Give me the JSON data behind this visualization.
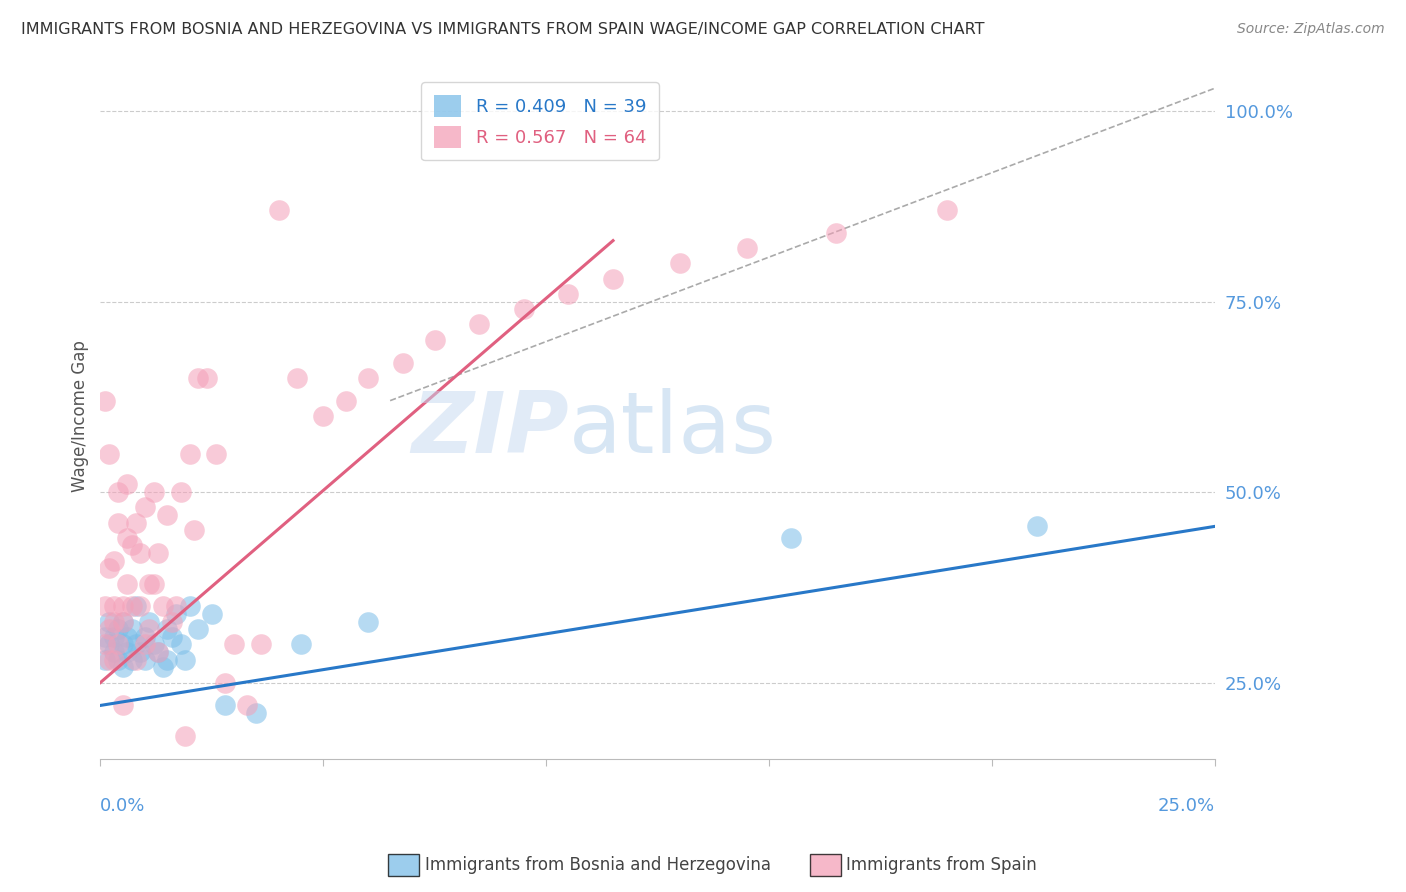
{
  "title": "IMMIGRANTS FROM BOSNIA AND HERZEGOVINA VS IMMIGRANTS FROM SPAIN WAGE/INCOME GAP CORRELATION CHART",
  "source": "Source: ZipAtlas.com",
  "ylabel": "Wage/Income Gap",
  "xlim": [
    0.0,
    0.25
  ],
  "ylim": [
    0.15,
    1.05
  ],
  "blue_R": 0.409,
  "blue_N": 39,
  "pink_R": 0.567,
  "pink_N": 64,
  "blue_color": "#7bbde8",
  "pink_color": "#f4a0b8",
  "blue_line_color": "#2878c8",
  "pink_line_color": "#e06080",
  "blue_scatter_x": [
    0.001,
    0.001,
    0.002,
    0.002,
    0.003,
    0.003,
    0.004,
    0.004,
    0.005,
    0.005,
    0.005,
    0.006,
    0.006,
    0.007,
    0.007,
    0.008,
    0.008,
    0.009,
    0.01,
    0.01,
    0.011,
    0.012,
    0.013,
    0.014,
    0.015,
    0.015,
    0.016,
    0.017,
    0.018,
    0.019,
    0.02,
    0.022,
    0.025,
    0.028,
    0.035,
    0.045,
    0.06,
    0.155,
    0.21
  ],
  "blue_scatter_y": [
    0.31,
    0.28,
    0.3,
    0.33,
    0.29,
    0.31,
    0.28,
    0.32,
    0.3,
    0.27,
    0.33,
    0.29,
    0.31,
    0.28,
    0.32,
    0.3,
    0.35,
    0.29,
    0.31,
    0.28,
    0.33,
    0.3,
    0.29,
    0.27,
    0.32,
    0.28,
    0.31,
    0.34,
    0.3,
    0.28,
    0.35,
    0.32,
    0.34,
    0.22,
    0.21,
    0.3,
    0.33,
    0.44,
    0.455
  ],
  "pink_scatter_x": [
    0.001,
    0.001,
    0.001,
    0.002,
    0.002,
    0.002,
    0.002,
    0.003,
    0.003,
    0.003,
    0.003,
    0.004,
    0.004,
    0.004,
    0.005,
    0.005,
    0.005,
    0.006,
    0.006,
    0.006,
    0.007,
    0.007,
    0.008,
    0.008,
    0.009,
    0.009,
    0.01,
    0.01,
    0.011,
    0.011,
    0.012,
    0.012,
    0.013,
    0.013,
    0.014,
    0.015,
    0.016,
    0.017,
    0.018,
    0.019,
    0.02,
    0.021,
    0.022,
    0.024,
    0.026,
    0.028,
    0.03,
    0.033,
    0.036,
    0.04,
    0.044,
    0.05,
    0.055,
    0.06,
    0.068,
    0.075,
    0.085,
    0.095,
    0.105,
    0.115,
    0.13,
    0.145,
    0.165,
    0.19
  ],
  "pink_scatter_y": [
    0.3,
    0.62,
    0.35,
    0.28,
    0.55,
    0.4,
    0.32,
    0.28,
    0.35,
    0.41,
    0.33,
    0.3,
    0.46,
    0.5,
    0.33,
    0.35,
    0.22,
    0.38,
    0.44,
    0.51,
    0.35,
    0.43,
    0.28,
    0.46,
    0.35,
    0.42,
    0.3,
    0.48,
    0.32,
    0.38,
    0.38,
    0.5,
    0.42,
    0.29,
    0.35,
    0.47,
    0.33,
    0.35,
    0.5,
    0.18,
    0.55,
    0.45,
    0.65,
    0.65,
    0.55,
    0.25,
    0.3,
    0.22,
    0.3,
    0.87,
    0.65,
    0.6,
    0.62,
    0.65,
    0.67,
    0.7,
    0.72,
    0.74,
    0.76,
    0.78,
    0.8,
    0.82,
    0.84,
    0.87
  ],
  "blue_line_x0": 0.0,
  "blue_line_x1": 0.25,
  "blue_line_y0": 0.22,
  "blue_line_y1": 0.455,
  "pink_line_x0": 0.0,
  "pink_line_x1": 0.115,
  "pink_line_y0": 0.25,
  "pink_line_y1": 0.83,
  "ref_line_x0": 0.065,
  "ref_line_x1": 0.25,
  "ref_line_y0": 0.62,
  "ref_line_y1": 1.03,
  "watermark_zip": "ZIP",
  "watermark_atlas": "atlas",
  "background_color": "#ffffff",
  "grid_color": "#cccccc",
  "axis_label_color": "#5599dd",
  "title_color": "#333333",
  "ytick_positions": [
    0.25,
    0.5,
    0.75,
    1.0
  ],
  "ytick_labels": [
    "25.0%",
    "50.0%",
    "75.0%",
    "100.0%"
  ]
}
